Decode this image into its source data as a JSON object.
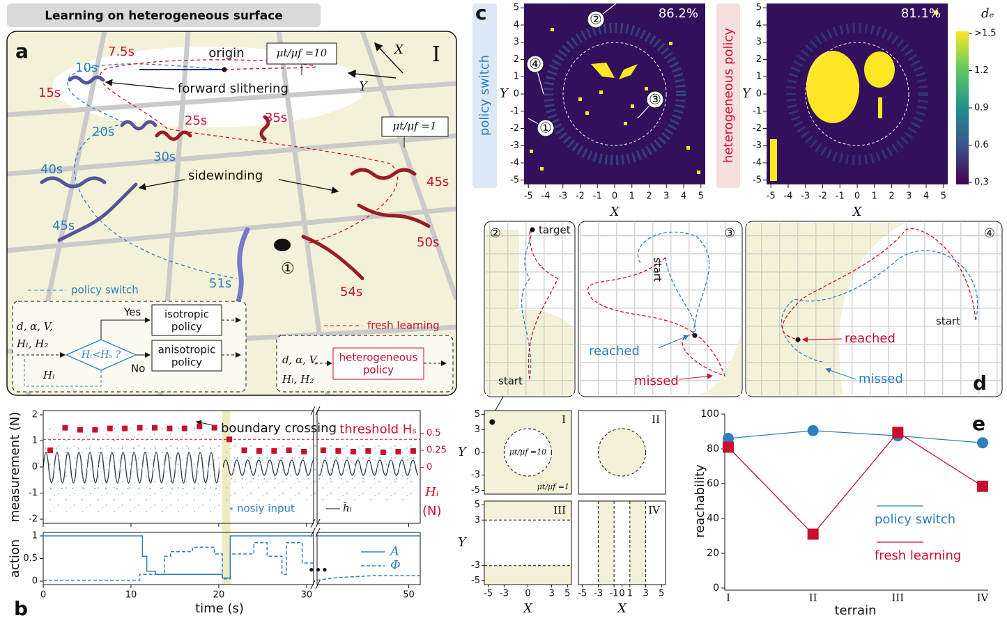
{
  "header": {
    "title": "Learning on heterogeneous surface"
  },
  "panel_a": {
    "label": "a",
    "terrain": "I",
    "origin": "origin",
    "ratio_high": "μt/μf =10",
    "ratio_low": "μt/μf =1",
    "axis_x": "X",
    "axis_y": "Y",
    "forward": "forward slithering",
    "sidewinding": "sidewinding",
    "marker": "①",
    "times_switch": [
      "10s",
      "20s",
      "30s",
      "40s",
      "45s",
      "51s"
    ],
    "times_fresh": [
      "7.5s",
      "15s",
      "25s",
      "35s",
      "45s",
      "50s",
      "54s"
    ],
    "legend_switch": "policy switch",
    "legend_fresh": "fresh learning",
    "flow_switch": {
      "inputs": [
        "d, α, V,",
        "Hₗ, H₂"
      ],
      "condition": "Hₗ<Hₛ ?",
      "yes": "Yes",
      "no": "No",
      "iso": [
        "isotropic",
        "policy"
      ],
      "aniso": [
        "anisotropic",
        "policy"
      ],
      "feedback": "Hₗ"
    },
    "flow_fresh": {
      "inputs": [
        "d, α, V,",
        "Hₗ, H₂"
      ],
      "policy": [
        "heterogeneous",
        "policy"
      ]
    }
  },
  "panel_b": {
    "label": "b",
    "crossing": "boundary crossing",
    "noisy": "nosiy input",
    "estimate": "ĥₗ",
    "ellipsis": "•••"
  },
  "panel_c": {
    "label": "c",
    "xlabel": "X",
    "ylabel": "Y",
    "xlim": [
      -5.25,
      5.25
    ],
    "ylim": [
      -5.25,
      5.25
    ],
    "ticks": [
      -5,
      -4,
      -3,
      -2,
      -1,
      0,
      1,
      2,
      3,
      4,
      5
    ],
    "maps": [
      {
        "side_label": "policy switch",
        "rate": "86.2%"
      },
      {
        "side_label": "heterogeneous policy",
        "rate": "81.1%"
      }
    ],
    "markers": [
      "①",
      "②",
      "③",
      "④"
    ],
    "colorbar": {
      "title": "dₑ",
      "lim": [
        0.3,
        1.5
      ],
      "ticks": [
        0.3,
        0.6,
        0.9,
        1.2,
        {
          "value": 1.5,
          "label": ">1.5"
        }
      ]
    }
  },
  "panel_d": {
    "label": "d",
    "views": [
      {
        "marker": "②",
        "target": "target",
        "start": "start"
      },
      {
        "marker": "③",
        "start": "start",
        "reached": "reached",
        "missed": "missed"
      },
      {
        "marker": "④",
        "start": "start",
        "reached": "reached",
        "missed": "missed"
      }
    ]
  },
  "terrains": {
    "names": [
      "I",
      "II",
      "III",
      "IV"
    ],
    "xlabel": "X",
    "ylabel": "Y",
    "lim": [
      -5.5,
      5.5
    ],
    "xticks": [
      -5,
      -3,
      0,
      3,
      5
    ],
    "yticks": [
      5,
      3,
      0,
      -3,
      -5
    ],
    "iv_xticks": [
      -5,
      -3,
      -1,
      0,
      1,
      3,
      5
    ],
    "iii_yticks": [
      5,
      3,
      -3,
      -5
    ],
    "ratio_high": "μt/μf =10",
    "ratio_low": "μt/μf =1"
  },
  "chart_data": [
    {
      "type": "scatter",
      "ylabel": "measurement (N)",
      "ylim": [
        -2,
        2
      ],
      "yticks": [
        -2,
        -1,
        0,
        1,
        2
      ],
      "y2label": "Hₗ",
      "y2unit": "(N)",
      "y2lim": [
        -0.76,
        0.77
      ],
      "y2ticks": [
        0,
        0.25,
        0.5
      ],
      "x_segments": [
        [
          0,
          30.8
        ],
        [
          39.6,
          51.3
        ]
      ],
      "highlight": [
        20.4,
        21.3
      ],
      "threshold": 0.41,
      "threshold_label": "threshold Hₛ",
      "series": [
        {
          "color": "#c8102e",
          "axis": "y2",
          "x": [
            0.8,
            2.5,
            4.2,
            5.9,
            7.6,
            9.3,
            11,
            12.7,
            14.4,
            16.1,
            17.8,
            19.5,
            21.2,
            22.9,
            24.6,
            26.3,
            28,
            29.7,
            40.3,
            42,
            43.7,
            45.4,
            47.1,
            48.8,
            50.5
          ],
          "values": [
            0.25,
            0.58,
            0.55,
            0.55,
            0.57,
            0.57,
            0.58,
            0.58,
            0.57,
            0.57,
            0.6,
            0.58,
            0.41,
            0.25,
            0.24,
            0.24,
            0.25,
            0.23,
            0.25,
            0.24,
            0.23,
            0.24,
            0.22,
            0.23,
            0.24
          ]
        }
      ]
    },
    {
      "type": "line",
      "ylabel": "action",
      "xlabel": "time (s)",
      "ylim": [
        0,
        1
      ],
      "yticks": [
        0,
        0.5,
        1
      ],
      "xticks": [
        0,
        10,
        20,
        30,
        50
      ],
      "series": [
        {
          "name": "A",
          "color": "#2d7fc1",
          "dash": false,
          "x": [
            0,
            11.3,
            11.3,
            11.8,
            11.8,
            12.8,
            12.8,
            20.4,
            20.4,
            21.3,
            21.3,
            30.8,
            30.8,
            39.6,
            51.3
          ],
          "values": [
            1,
            1,
            0.55,
            0.55,
            0.22,
            0.22,
            0.15,
            0.15,
            0.07,
            0.07,
            1,
            1,
            null,
            1,
            1
          ]
        },
        {
          "name": "Φ",
          "color": "#2d7fc1",
          "dash": true,
          "x": [
            0,
            11,
            11,
            13.8,
            13.8,
            14.5,
            14.5,
            17,
            17,
            19.5,
            19.5,
            20.4,
            20.4,
            21.3,
            21.3,
            24,
            24,
            25.5,
            25.5,
            27.2,
            27.2,
            27.7,
            27.7,
            29.5,
            29.5,
            30.8,
            30.8,
            39.6,
            42,
            46,
            51.3
          ],
          "values": [
            0.02,
            0.02,
            0.15,
            0.15,
            0.55,
            0.55,
            0.65,
            0.65,
            0.75,
            0.75,
            0.6,
            0.6,
            0.05,
            0.05,
            0.6,
            0.6,
            0.85,
            0.85,
            0.55,
            0.55,
            0.15,
            0.15,
            0.85,
            0.85,
            0.4,
            0.4,
            null,
            0.02,
            0.08,
            0.12,
            0.12
          ]
        }
      ]
    },
    {
      "type": "line",
      "label": "e",
      "xlabel": "terrain",
      "ylabel": "reachability",
      "categories": [
        "I",
        "II",
        "III",
        "IV"
      ],
      "ylim": [
        0,
        100
      ],
      "yticks": [
        0,
        20,
        40,
        60,
        80,
        100
      ],
      "series": [
        {
          "name": "policy switch",
          "color": "#2d7fc1",
          "marker": "circle",
          "values": [
            86,
            90.5,
            87.5,
            83.5
          ]
        },
        {
          "name": "fresh learning",
          "color": "#c8102e",
          "marker": "square",
          "values": [
            81,
            31,
            89.5,
            58.5
          ]
        }
      ]
    }
  ]
}
